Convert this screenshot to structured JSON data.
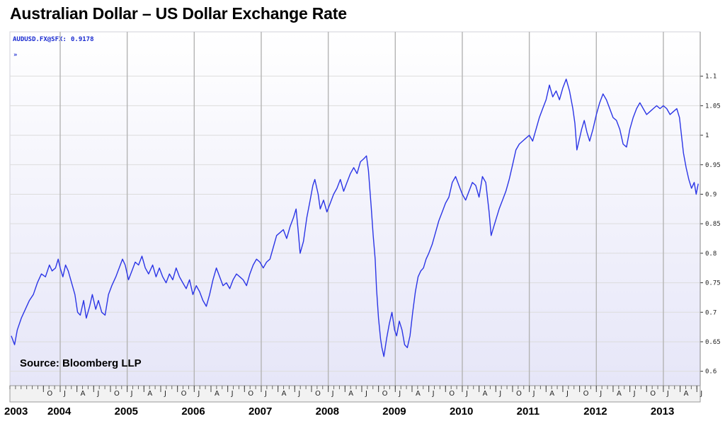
{
  "title": "Australian Dollar – US Dollar Exchange Rate",
  "chart_header": {
    "ticker": "AUDUSD.FX@SFX:",
    "last_value": "0.9178",
    "arrow": "»"
  },
  "source": "Source: Bloomberg LLP",
  "colors": {
    "line": "#2b35e6",
    "plot_bg_top": "#ffffff",
    "plot_bg_bottom": "#e6e6f8",
    "grid": "#b4b4b4"
  },
  "chart_data": {
    "type": "line",
    "title": "Australian Dollar – US Dollar Exchange Rate",
    "xlabel": "",
    "ylabel": "",
    "ylim": [
      0.59,
      1.12
    ],
    "xlim": [
      2003.25,
      2013.55
    ],
    "grid": true,
    "y_ticks": [
      0.6,
      0.65,
      0.7,
      0.75,
      0.8,
      0.85,
      0.9,
      0.95,
      1,
      1.05,
      1.1
    ],
    "y_tick_labels": [
      "0.6",
      "0.65",
      "0.7",
      "0.75",
      "0.8",
      "0.85",
      "0.9",
      "0.95",
      "1",
      "1.05",
      "1.1"
    ],
    "year_labels": [
      "2003",
      "2004",
      "2005",
      "2006",
      "2007",
      "2008",
      "2009",
      "2010",
      "2011",
      "2012",
      "2013"
    ],
    "year_label_x": [
      2003.3,
      2004.0,
      2005.0,
      2006.0,
      2007.0,
      2008.0,
      2009.0,
      2010.0,
      2011.0,
      2012.0,
      2013.0
    ],
    "month_labels": [
      "O",
      "J",
      "A",
      "J",
      "O",
      "J",
      "A",
      "J",
      "O",
      "J",
      "A",
      "J",
      "O",
      "J",
      "A",
      "J",
      "O",
      "J",
      "A",
      "J",
      "O",
      "J",
      "A",
      "J",
      "O",
      "J",
      "A",
      "J",
      "O",
      "J",
      "A",
      "J",
      "O",
      "J",
      "A",
      "J",
      "O",
      "J",
      "A",
      "J",
      "O",
      "J",
      "A",
      "J"
    ],
    "month_label_x": [
      2003.75,
      2004.0,
      2004.25,
      2004.5,
      2004.75,
      2005.0,
      2005.25,
      2005.5,
      2005.75,
      2006.0,
      2006.25,
      2006.5,
      2006.75,
      2007.0,
      2007.25,
      2007.5,
      2007.75,
      2008.0,
      2008.25,
      2008.5,
      2008.75,
      2009.0,
      2009.25,
      2009.5,
      2009.75,
      2010.0,
      2010.25,
      2010.5,
      2010.75,
      2011.0,
      2011.25,
      2011.5,
      2011.75,
      2012.0,
      2012.25,
      2012.5,
      2012.75,
      2013.0,
      2013.25,
      2013.5
    ],
    "series": [
      {
        "values": [
          [
            2003.27,
            0.66
          ],
          [
            2003.32,
            0.645
          ],
          [
            2003.36,
            0.67
          ],
          [
            2003.42,
            0.69
          ],
          [
            2003.48,
            0.705
          ],
          [
            2003.54,
            0.72
          ],
          [
            2003.6,
            0.73
          ],
          [
            2003.66,
            0.75
          ],
          [
            2003.72,
            0.765
          ],
          [
            2003.78,
            0.76
          ],
          [
            2003.84,
            0.78
          ],
          [
            2003.88,
            0.77
          ],
          [
            2003.93,
            0.775
          ],
          [
            2003.97,
            0.79
          ],
          [
            2004.0,
            0.775
          ],
          [
            2004.04,
            0.76
          ],
          [
            2004.08,
            0.78
          ],
          [
            2004.12,
            0.77
          ],
          [
            2004.17,
            0.75
          ],
          [
            2004.22,
            0.73
          ],
          [
            2004.26,
            0.7
          ],
          [
            2004.3,
            0.695
          ],
          [
            2004.35,
            0.72
          ],
          [
            2004.39,
            0.69
          ],
          [
            2004.44,
            0.71
          ],
          [
            2004.48,
            0.73
          ],
          [
            2004.53,
            0.705
          ],
          [
            2004.57,
            0.72
          ],
          [
            2004.62,
            0.7
          ],
          [
            2004.67,
            0.695
          ],
          [
            2004.72,
            0.73
          ],
          [
            2004.77,
            0.745
          ],
          [
            2004.83,
            0.76
          ],
          [
            2004.88,
            0.775
          ],
          [
            2004.93,
            0.79
          ],
          [
            2004.97,
            0.78
          ],
          [
            2005.02,
            0.755
          ],
          [
            2005.07,
            0.77
          ],
          [
            2005.12,
            0.785
          ],
          [
            2005.17,
            0.78
          ],
          [
            2005.22,
            0.795
          ],
          [
            2005.27,
            0.775
          ],
          [
            2005.32,
            0.765
          ],
          [
            2005.38,
            0.78
          ],
          [
            2005.43,
            0.76
          ],
          [
            2005.48,
            0.775
          ],
          [
            2005.53,
            0.76
          ],
          [
            2005.58,
            0.75
          ],
          [
            2005.63,
            0.765
          ],
          [
            2005.68,
            0.755
          ],
          [
            2005.73,
            0.775
          ],
          [
            2005.78,
            0.76
          ],
          [
            2005.83,
            0.75
          ],
          [
            2005.88,
            0.74
          ],
          [
            2005.93,
            0.755
          ],
          [
            2005.98,
            0.73
          ],
          [
            2006.03,
            0.745
          ],
          [
            2006.08,
            0.735
          ],
          [
            2006.13,
            0.72
          ],
          [
            2006.18,
            0.71
          ],
          [
            2006.23,
            0.73
          ],
          [
            2006.28,
            0.755
          ],
          [
            2006.33,
            0.775
          ],
          [
            2006.38,
            0.76
          ],
          [
            2006.43,
            0.745
          ],
          [
            2006.48,
            0.75
          ],
          [
            2006.53,
            0.74
          ],
          [
            2006.58,
            0.755
          ],
          [
            2006.63,
            0.765
          ],
          [
            2006.68,
            0.76
          ],
          [
            2006.73,
            0.755
          ],
          [
            2006.78,
            0.745
          ],
          [
            2006.83,
            0.765
          ],
          [
            2006.88,
            0.78
          ],
          [
            2006.93,
            0.79
          ],
          [
            2006.98,
            0.785
          ],
          [
            2007.03,
            0.775
          ],
          [
            2007.08,
            0.785
          ],
          [
            2007.13,
            0.79
          ],
          [
            2007.18,
            0.81
          ],
          [
            2007.23,
            0.83
          ],
          [
            2007.28,
            0.835
          ],
          [
            2007.33,
            0.84
          ],
          [
            2007.38,
            0.825
          ],
          [
            2007.43,
            0.845
          ],
          [
            2007.48,
            0.86
          ],
          [
            2007.52,
            0.875
          ],
          [
            2007.55,
            0.84
          ],
          [
            2007.58,
            0.8
          ],
          [
            2007.63,
            0.82
          ],
          [
            2007.68,
            0.86
          ],
          [
            2007.73,
            0.89
          ],
          [
            2007.77,
            0.915
          ],
          [
            2007.8,
            0.925
          ],
          [
            2007.85,
            0.9
          ],
          [
            2007.88,
            0.875
          ],
          [
            2007.93,
            0.89
          ],
          [
            2007.98,
            0.87
          ],
          [
            2008.03,
            0.885
          ],
          [
            2008.08,
            0.9
          ],
          [
            2008.13,
            0.91
          ],
          [
            2008.18,
            0.925
          ],
          [
            2008.23,
            0.905
          ],
          [
            2008.28,
            0.92
          ],
          [
            2008.33,
            0.935
          ],
          [
            2008.38,
            0.945
          ],
          [
            2008.43,
            0.935
          ],
          [
            2008.48,
            0.955
          ],
          [
            2008.53,
            0.96
          ],
          [
            2008.57,
            0.965
          ],
          [
            2008.6,
            0.94
          ],
          [
            2008.64,
            0.88
          ],
          [
            2008.67,
            0.83
          ],
          [
            2008.7,
            0.79
          ],
          [
            2008.72,
            0.74
          ],
          [
            2008.75,
            0.69
          ],
          [
            2008.78,
            0.655
          ],
          [
            2008.8,
            0.64
          ],
          [
            2008.83,
            0.625
          ],
          [
            2008.87,
            0.655
          ],
          [
            2008.91,
            0.68
          ],
          [
            2008.95,
            0.7
          ],
          [
            2008.99,
            0.67
          ],
          [
            2009.02,
            0.66
          ],
          [
            2009.06,
            0.685
          ],
          [
            2009.1,
            0.67
          ],
          [
            2009.14,
            0.645
          ],
          [
            2009.18,
            0.64
          ],
          [
            2009.22,
            0.66
          ],
          [
            2009.26,
            0.7
          ],
          [
            2009.3,
            0.735
          ],
          [
            2009.34,
            0.76
          ],
          [
            2009.38,
            0.77
          ],
          [
            2009.42,
            0.775
          ],
          [
            2009.46,
            0.79
          ],
          [
            2009.5,
            0.8
          ],
          [
            2009.55,
            0.815
          ],
          [
            2009.6,
            0.835
          ],
          [
            2009.65,
            0.855
          ],
          [
            2009.7,
            0.87
          ],
          [
            2009.75,
            0.885
          ],
          [
            2009.8,
            0.895
          ],
          [
            2009.85,
            0.92
          ],
          [
            2009.9,
            0.93
          ],
          [
            2009.95,
            0.915
          ],
          [
            2010.0,
            0.9
          ],
          [
            2010.05,
            0.89
          ],
          [
            2010.1,
            0.905
          ],
          [
            2010.15,
            0.92
          ],
          [
            2010.2,
            0.915
          ],
          [
            2010.25,
            0.895
          ],
          [
            2010.3,
            0.93
          ],
          [
            2010.35,
            0.92
          ],
          [
            2010.4,
            0.87
          ],
          [
            2010.43,
            0.83
          ],
          [
            2010.47,
            0.845
          ],
          [
            2010.51,
            0.86
          ],
          [
            2010.55,
            0.875
          ],
          [
            2010.6,
            0.89
          ],
          [
            2010.65,
            0.905
          ],
          [
            2010.7,
            0.925
          ],
          [
            2010.75,
            0.95
          ],
          [
            2010.8,
            0.975
          ],
          [
            2010.85,
            0.985
          ],
          [
            2010.9,
            0.99
          ],
          [
            2010.95,
            0.995
          ],
          [
            2011.0,
            1.0
          ],
          [
            2011.05,
            0.99
          ],
          [
            2011.1,
            1.01
          ],
          [
            2011.15,
            1.03
          ],
          [
            2011.2,
            1.045
          ],
          [
            2011.25,
            1.06
          ],
          [
            2011.3,
            1.085
          ],
          [
            2011.35,
            1.065
          ],
          [
            2011.4,
            1.075
          ],
          [
            2011.45,
            1.06
          ],
          [
            2011.5,
            1.08
          ],
          [
            2011.55,
            1.095
          ],
          [
            2011.6,
            1.075
          ],
          [
            2011.65,
            1.045
          ],
          [
            2011.68,
            1.02
          ],
          [
            2011.71,
            0.975
          ],
          [
            2011.74,
            0.99
          ],
          [
            2011.78,
            1.01
          ],
          [
            2011.82,
            1.025
          ],
          [
            2011.86,
            1.005
          ],
          [
            2011.9,
            0.99
          ],
          [
            2011.95,
            1.01
          ],
          [
            2012.0,
            1.035
          ],
          [
            2012.05,
            1.055
          ],
          [
            2012.1,
            1.07
          ],
          [
            2012.15,
            1.06
          ],
          [
            2012.2,
            1.045
          ],
          [
            2012.25,
            1.03
          ],
          [
            2012.3,
            1.025
          ],
          [
            2012.35,
            1.01
          ],
          [
            2012.4,
            0.985
          ],
          [
            2012.45,
            0.98
          ],
          [
            2012.5,
            1.01
          ],
          [
            2012.55,
            1.03
          ],
          [
            2012.6,
            1.045
          ],
          [
            2012.65,
            1.055
          ],
          [
            2012.7,
            1.045
          ],
          [
            2012.75,
            1.035
          ],
          [
            2012.8,
            1.04
          ],
          [
            2012.85,
            1.045
          ],
          [
            2012.9,
            1.05
          ],
          [
            2012.95,
            1.045
          ],
          [
            2013.0,
            1.05
          ],
          [
            2013.05,
            1.045
          ],
          [
            2013.1,
            1.035
          ],
          [
            2013.15,
            1.04
          ],
          [
            2013.2,
            1.045
          ],
          [
            2013.24,
            1.03
          ],
          [
            2013.27,
            1.0
          ],
          [
            2013.3,
            0.97
          ],
          [
            2013.34,
            0.945
          ],
          [
            2013.38,
            0.925
          ],
          [
            2013.42,
            0.91
          ],
          [
            2013.46,
            0.92
          ],
          [
            2013.49,
            0.9
          ],
          [
            2013.52,
            0.9178
          ]
        ]
      }
    ]
  }
}
